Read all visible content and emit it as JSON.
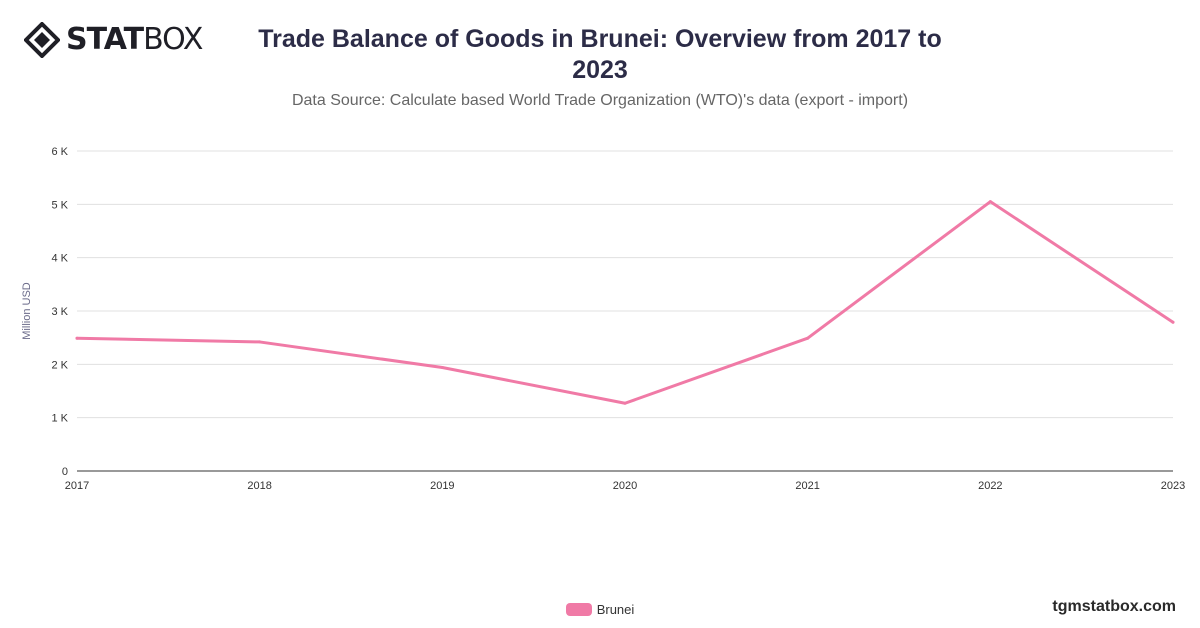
{
  "brand": {
    "logo_bold": "STAT",
    "logo_light": "BOX"
  },
  "header": {
    "title": "Trade Balance of Goods in Brunei: Overview from 2017 to 2023",
    "subtitle": "Data Source: Calculate based World Trade Organization (WTO)'s data (export - import)"
  },
  "footer": {
    "url": "tgmstatbox.com"
  },
  "colors": {
    "series": "#f07aa6",
    "grid": "#e0e0e0",
    "axis": "#333333"
  },
  "chart_data": {
    "type": "line",
    "title": "Trade Balance of Goods in Brunei: Overview from 2017 to 2023",
    "subtitle": "Data Source: Calculate based World Trade Organization (WTO)'s data (export - import)",
    "xlabel": "",
    "ylabel": "Million USD",
    "categories": [
      "2017",
      "2018",
      "2019",
      "2020",
      "2021",
      "2022",
      "2023"
    ],
    "series": [
      {
        "name": "Brunei",
        "values": [
          2490,
          2420,
          1940,
          1270,
          2490,
          5050,
          2790
        ]
      }
    ],
    "ylim": [
      0,
      6000
    ],
    "yticks": [
      0,
      1000,
      2000,
      3000,
      4000,
      5000,
      6000
    ],
    "ytick_labels": [
      "0",
      "1 K",
      "2 K",
      "3 K",
      "4 K",
      "5 K",
      "6 K"
    ],
    "grid": true,
    "legend": "bottom-center"
  }
}
